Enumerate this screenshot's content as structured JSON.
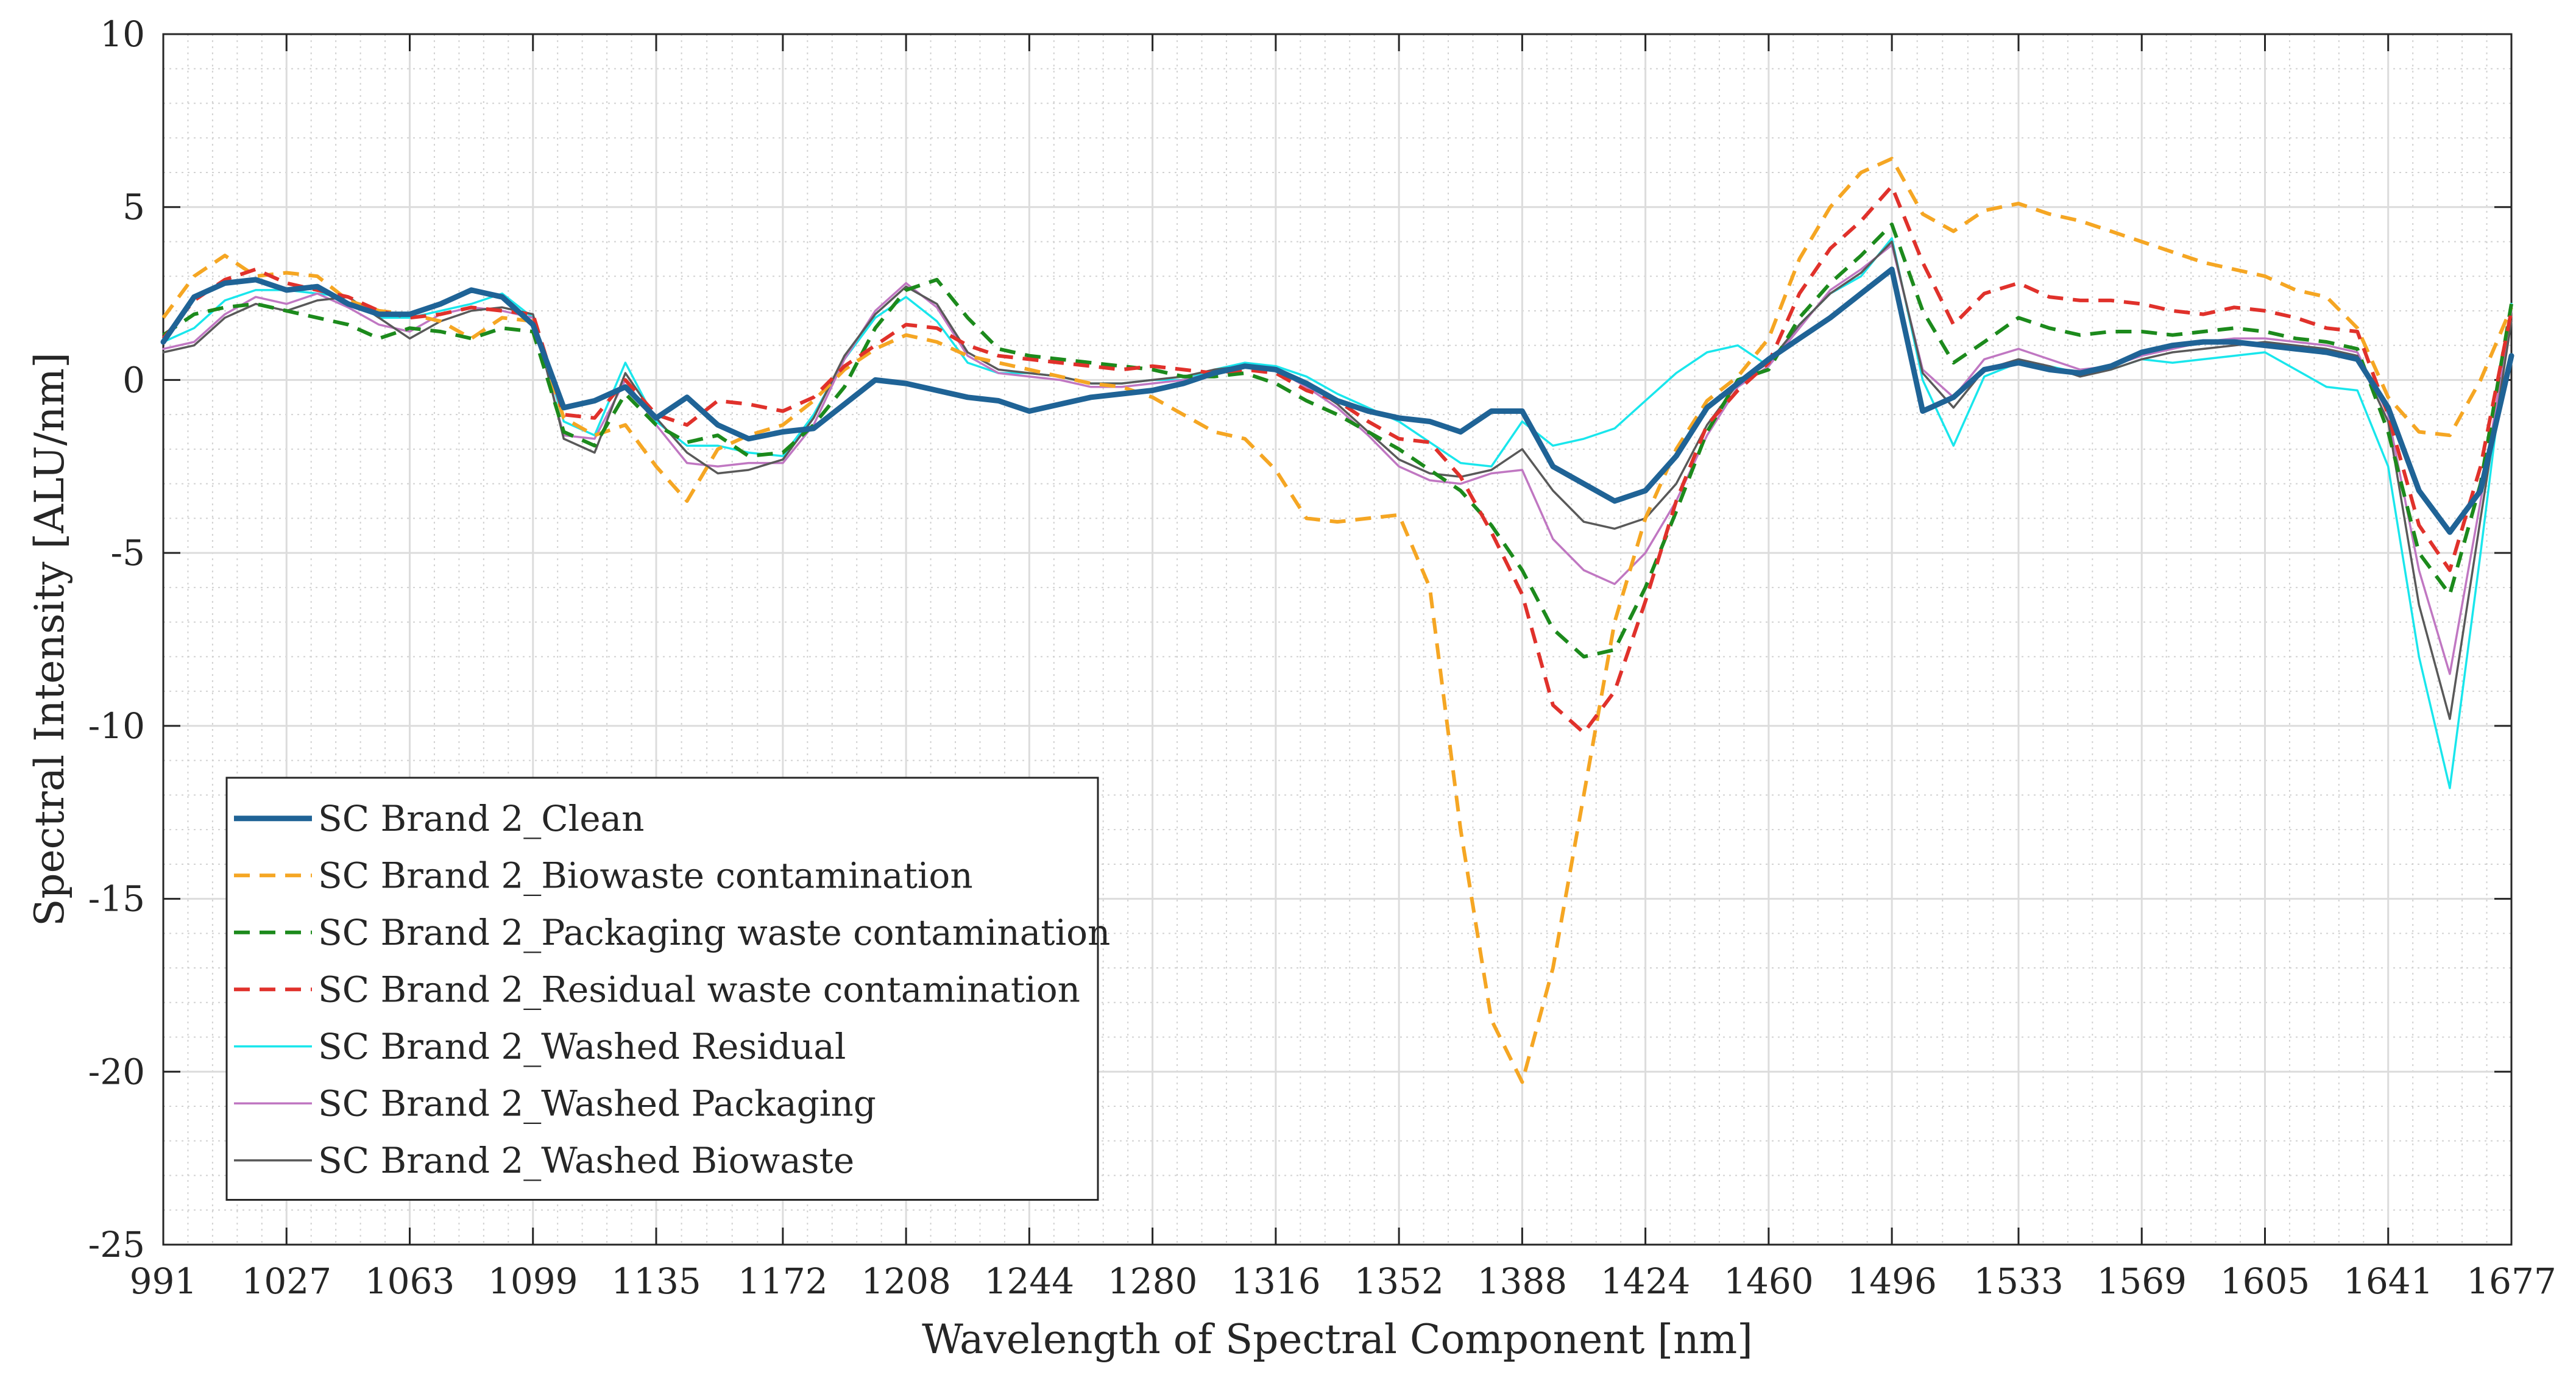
{
  "chart_data": {
    "type": "line",
    "title": "",
    "xlabel": "Wavelength of Spectral Component [nm]",
    "ylabel": "Spectral Intensity [ALU/nm]",
    "xlim": [
      991,
      1677
    ],
    "ylim": [
      -25,
      10
    ],
    "grid": true,
    "minor_grid": true,
    "legend_position": "bottom-left",
    "x_ticks": [
      991,
      1027,
      1063,
      1099,
      1135,
      1172,
      1208,
      1244,
      1280,
      1316,
      1352,
      1388,
      1424,
      1460,
      1496,
      1533,
      1569,
      1605,
      1641,
      1677
    ],
    "x_tick_labels": [
      "991",
      "1027",
      "1063",
      "1099",
      "1135",
      "1172",
      "1208",
      "1244",
      "1280",
      "1316",
      "1352",
      "1388",
      "1424",
      "1460",
      "1496",
      "1533",
      "1569",
      "1605",
      "1641",
      "1677"
    ],
    "y_ticks": [
      -25,
      -20,
      -15,
      -10,
      -5,
      0,
      5,
      10
    ],
    "y_tick_labels": [
      "-25",
      "-20",
      "-15",
      "-10",
      "-5",
      "0",
      "5",
      "10"
    ],
    "series": [
      {
        "name": "SC Brand 2_Clean",
        "color": "#1f6396",
        "dash": "solid",
        "weight": "thick",
        "x": [
          991,
          1000,
          1009,
          1018,
          1027,
          1036,
          1045,
          1054,
          1063,
          1072,
          1081,
          1090,
          1099,
          1108,
          1117,
          1126,
          1135,
          1144,
          1153,
          1162,
          1172,
          1181,
          1190,
          1199,
          1208,
          1217,
          1226,
          1235,
          1244,
          1253,
          1262,
          1271,
          1280,
          1289,
          1298,
          1307,
          1316,
          1325,
          1334,
          1343,
          1352,
          1361,
          1370,
          1379,
          1388,
          1397,
          1406,
          1415,
          1424,
          1433,
          1442,
          1451,
          1460,
          1469,
          1478,
          1487,
          1496,
          1505,
          1514,
          1523,
          1533,
          1542,
          1551,
          1560,
          1569,
          1578,
          1587,
          1596,
          1605,
          1614,
          1623,
          1632,
          1641,
          1650,
          1659,
          1668,
          1677
        ],
        "y": [
          1.1,
          2.4,
          2.8,
          2.9,
          2.6,
          2.7,
          2.2,
          1.9,
          1.9,
          2.2,
          2.6,
          2.4,
          1.6,
          -0.8,
          -0.6,
          -0.2,
          -1.1,
          -0.5,
          -1.3,
          -1.7,
          -1.5,
          -1.4,
          -0.7,
          0.0,
          -0.1,
          -0.3,
          -0.5,
          -0.6,
          -0.9,
          -0.7,
          -0.5,
          -0.4,
          -0.3,
          -0.1,
          0.2,
          0.4,
          0.3,
          -0.1,
          -0.6,
          -0.9,
          -1.1,
          -1.2,
          -1.5,
          -0.9,
          -0.9,
          -2.5,
          -3.0,
          -3.5,
          -3.2,
          -2.2,
          -0.8,
          -0.1,
          0.6,
          1.2,
          1.8,
          2.5,
          3.2,
          -0.9,
          -0.5,
          0.3,
          0.5,
          0.3,
          0.2,
          0.4,
          0.8,
          1.0,
          1.1,
          1.1,
          1.0,
          0.9,
          0.8,
          0.6,
          -0.8,
          -3.2,
          -4.4,
          -3.2,
          0.7
        ]
      },
      {
        "name": "SC Brand 2_Biowaste contamination",
        "color": "#f5a623",
        "dash": "dashed",
        "weight": "normal",
        "x": [
          991,
          1000,
          1009,
          1018,
          1027,
          1036,
          1045,
          1054,
          1063,
          1072,
          1081,
          1090,
          1099,
          1108,
          1117,
          1126,
          1135,
          1144,
          1153,
          1162,
          1172,
          1181,
          1190,
          1199,
          1208,
          1217,
          1226,
          1235,
          1244,
          1253,
          1262,
          1271,
          1280,
          1289,
          1298,
          1307,
          1316,
          1325,
          1334,
          1343,
          1352,
          1361,
          1370,
          1379,
          1388,
          1397,
          1406,
          1415,
          1424,
          1433,
          1442,
          1451,
          1460,
          1469,
          1478,
          1487,
          1496,
          1505,
          1514,
          1523,
          1533,
          1542,
          1551,
          1560,
          1569,
          1578,
          1587,
          1596,
          1605,
          1614,
          1623,
          1632,
          1641,
          1650,
          1659,
          1668,
          1677
        ],
        "y": [
          1.8,
          3.0,
          3.6,
          3.0,
          3.1,
          3.0,
          2.3,
          2.0,
          1.9,
          1.7,
          1.2,
          1.8,
          1.7,
          -1.1,
          -1.6,
          -1.3,
          -2.5,
          -3.5,
          -2.0,
          -1.6,
          -1.3,
          -0.6,
          0.3,
          0.9,
          1.3,
          1.1,
          0.7,
          0.5,
          0.3,
          0.1,
          -0.1,
          -0.2,
          -0.5,
          -1.0,
          -1.5,
          -1.7,
          -2.6,
          -4.0,
          -4.1,
          -4.0,
          -3.9,
          -6.0,
          -13.0,
          -18.5,
          -20.3,
          -17.0,
          -12.0,
          -7.0,
          -4.0,
          -2.0,
          -0.6,
          0.1,
          1.2,
          3.5,
          5.0,
          6.0,
          6.4,
          4.8,
          4.3,
          4.9,
          5.1,
          4.8,
          4.6,
          4.3,
          4.0,
          3.7,
          3.4,
          3.2,
          3.0,
          2.6,
          2.4,
          1.5,
          -0.5,
          -1.5,
          -1.6,
          0.0,
          2.1
        ]
      },
      {
        "name": "SC Brand 2_Packaging waste contamination",
        "color": "#1c8a1c",
        "dash": "dashed",
        "weight": "normal",
        "x": [
          991,
          1000,
          1009,
          1018,
          1027,
          1036,
          1045,
          1054,
          1063,
          1072,
          1081,
          1090,
          1099,
          1108,
          1117,
          1126,
          1135,
          1144,
          1153,
          1162,
          1172,
          1181,
          1190,
          1199,
          1208,
          1217,
          1226,
          1235,
          1244,
          1253,
          1262,
          1271,
          1280,
          1289,
          1298,
          1307,
          1316,
          1325,
          1334,
          1343,
          1352,
          1361,
          1370,
          1379,
          1388,
          1397,
          1406,
          1415,
          1424,
          1433,
          1442,
          1451,
          1460,
          1469,
          1478,
          1487,
          1496,
          1505,
          1514,
          1523,
          1533,
          1542,
          1551,
          1560,
          1569,
          1578,
          1587,
          1596,
          1605,
          1614,
          1623,
          1632,
          1641,
          1650,
          1659,
          1668,
          1677
        ],
        "y": [
          1.3,
          1.9,
          2.1,
          2.2,
          2.0,
          1.8,
          1.6,
          1.2,
          1.5,
          1.4,
          1.2,
          1.5,
          1.4,
          -1.5,
          -1.9,
          -0.4,
          -1.3,
          -1.8,
          -1.6,
          -2.2,
          -2.1,
          -1.3,
          -0.2,
          1.5,
          2.6,
          2.9,
          1.8,
          0.9,
          0.7,
          0.6,
          0.5,
          0.4,
          0.3,
          0.1,
          0.1,
          0.2,
          -0.1,
          -0.6,
          -1.0,
          -1.5,
          -2.0,
          -2.6,
          -3.2,
          -4.2,
          -5.5,
          -7.2,
          -8.0,
          -7.8,
          -6.0,
          -3.8,
          -1.5,
          0.0,
          0.3,
          1.8,
          2.8,
          3.6,
          4.5,
          2.0,
          0.5,
          1.1,
          1.8,
          1.5,
          1.3,
          1.4,
          1.4,
          1.3,
          1.4,
          1.5,
          1.4,
          1.2,
          1.1,
          0.9,
          -1.5,
          -5.0,
          -6.2,
          -3.0,
          2.2
        ]
      },
      {
        "name": "SC Brand 2_Residual waste contamination",
        "color": "#e0312b",
        "dash": "dashed",
        "weight": "normal",
        "x": [
          991,
          1000,
          1009,
          1018,
          1027,
          1036,
          1045,
          1054,
          1063,
          1072,
          1081,
          1090,
          1099,
          1108,
          1117,
          1126,
          1135,
          1144,
          1153,
          1162,
          1172,
          1181,
          1190,
          1199,
          1208,
          1217,
          1226,
          1235,
          1244,
          1253,
          1262,
          1271,
          1280,
          1289,
          1298,
          1307,
          1316,
          1325,
          1334,
          1343,
          1352,
          1361,
          1370,
          1379,
          1388,
          1397,
          1406,
          1415,
          1424,
          1433,
          1442,
          1451,
          1460,
          1469,
          1478,
          1487,
          1496,
          1505,
          1514,
          1523,
          1533,
          1542,
          1551,
          1560,
          1569,
          1578,
          1587,
          1596,
          1605,
          1614,
          1623,
          1632,
          1641,
          1650,
          1659,
          1668,
          1677
        ],
        "y": [
          1.2,
          2.3,
          2.9,
          3.2,
          2.8,
          2.6,
          2.4,
          2.0,
          1.8,
          1.9,
          2.1,
          2.0,
          1.9,
          -1.0,
          -1.1,
          0.0,
          -1.0,
          -1.3,
          -0.6,
          -0.7,
          -0.9,
          -0.5,
          0.4,
          1.0,
          1.6,
          1.5,
          1.0,
          0.7,
          0.6,
          0.5,
          0.4,
          0.3,
          0.4,
          0.3,
          0.2,
          0.3,
          0.2,
          -0.3,
          -0.6,
          -1.2,
          -1.7,
          -1.8,
          -2.8,
          -4.4,
          -6.2,
          -9.4,
          -10.2,
          -9.0,
          -6.4,
          -3.5,
          -1.3,
          -0.3,
          0.5,
          2.5,
          3.8,
          4.6,
          5.6,
          3.4,
          1.6,
          2.5,
          2.8,
          2.4,
          2.3,
          2.3,
          2.2,
          2.0,
          1.9,
          2.1,
          2.0,
          1.8,
          1.5,
          1.4,
          -1.0,
          -4.2,
          -5.5,
          -2.5,
          2.0
        ]
      },
      {
        "name": "SC Brand 2_Washed Residual",
        "color": "#19e6ec",
        "dash": "solid",
        "weight": "thin",
        "x": [
          991,
          1000,
          1009,
          1018,
          1027,
          1036,
          1045,
          1054,
          1063,
          1072,
          1081,
          1090,
          1099,
          1108,
          1117,
          1126,
          1135,
          1144,
          1153,
          1162,
          1172,
          1181,
          1190,
          1199,
          1208,
          1217,
          1226,
          1235,
          1244,
          1253,
          1262,
          1271,
          1280,
          1289,
          1298,
          1307,
          1316,
          1325,
          1334,
          1343,
          1352,
          1361,
          1370,
          1379,
          1388,
          1397,
          1406,
          1415,
          1424,
          1433,
          1442,
          1451,
          1460,
          1469,
          1478,
          1487,
          1496,
          1505,
          1514,
          1523,
          1533,
          1542,
          1551,
          1560,
          1569,
          1578,
          1587,
          1596,
          1605,
          1614,
          1623,
          1632,
          1641,
          1650,
          1659,
          1668,
          1677
        ],
        "y": [
          1.1,
          1.5,
          2.3,
          2.6,
          2.6,
          2.5,
          2.4,
          1.8,
          1.8,
          2.0,
          2.2,
          2.5,
          1.8,
          -1.2,
          -1.6,
          0.5,
          -1.2,
          -1.9,
          -1.9,
          -2.1,
          -2.2,
          -1.0,
          0.6,
          1.8,
          2.4,
          1.7,
          0.5,
          0.2,
          0.2,
          0.1,
          -0.1,
          -0.1,
          0.0,
          0.0,
          0.3,
          0.5,
          0.4,
          0.1,
          -0.4,
          -0.8,
          -1.2,
          -1.8,
          -2.4,
          -2.5,
          -1.2,
          -1.9,
          -1.7,
          -1.4,
          -0.6,
          0.2,
          0.8,
          1.0,
          0.4,
          1.6,
          2.5,
          3.0,
          4.1,
          0.0,
          -1.9,
          0.1,
          0.5,
          0.4,
          0.2,
          0.3,
          0.6,
          0.5,
          0.6,
          0.7,
          0.8,
          0.3,
          -0.2,
          -0.3,
          -2.5,
          -8.0,
          -11.8,
          -5.0,
          2.2
        ]
      },
      {
        "name": "SC Brand 2_Washed Packaging",
        "color": "#c077c2",
        "dash": "solid",
        "weight": "thin",
        "x": [
          991,
          1000,
          1009,
          1018,
          1027,
          1036,
          1045,
          1054,
          1063,
          1072,
          1081,
          1090,
          1099,
          1108,
          1117,
          1126,
          1135,
          1144,
          1153,
          1162,
          1172,
          1181,
          1190,
          1199,
          1208,
          1217,
          1226,
          1235,
          1244,
          1253,
          1262,
          1271,
          1280,
          1289,
          1298,
          1307,
          1316,
          1325,
          1334,
          1343,
          1352,
          1361,
          1370,
          1379,
          1388,
          1397,
          1406,
          1415,
          1424,
          1433,
          1442,
          1451,
          1460,
          1469,
          1478,
          1487,
          1496,
          1505,
          1514,
          1523,
          1533,
          1542,
          1551,
          1560,
          1569,
          1578,
          1587,
          1596,
          1605,
          1614,
          1623,
          1632,
          1641,
          1650,
          1659,
          1668,
          1677
        ],
        "y": [
          0.9,
          1.1,
          1.9,
          2.4,
          2.2,
          2.5,
          2.1,
          1.6,
          1.4,
          1.9,
          2.1,
          2.0,
          1.8,
          -1.6,
          -1.7,
          0.0,
          -1.3,
          -2.4,
          -2.5,
          -2.4,
          -2.4,
          -1.3,
          0.6,
          2.0,
          2.8,
          2.1,
          0.7,
          0.2,
          0.1,
          0.0,
          -0.2,
          -0.2,
          -0.1,
          0.0,
          0.2,
          0.4,
          0.3,
          -0.2,
          -0.8,
          -1.6,
          -2.5,
          -2.9,
          -3.0,
          -2.7,
          -2.6,
          -4.6,
          -5.5,
          -5.9,
          -5.0,
          -3.5,
          -1.6,
          -0.2,
          0.4,
          1.5,
          2.6,
          3.2,
          3.9,
          0.3,
          -0.5,
          0.6,
          0.9,
          0.6,
          0.3,
          0.4,
          0.7,
          0.9,
          1.1,
          1.2,
          1.2,
          1.1,
          1.0,
          0.8,
          -1.0,
          -5.5,
          -8.5,
          -3.5,
          2.0
        ]
      },
      {
        "name": "SC Brand 2_Washed Biowaste",
        "color": "#595959",
        "dash": "solid",
        "weight": "thin",
        "x": [
          991,
          1000,
          1009,
          1018,
          1027,
          1036,
          1045,
          1054,
          1063,
          1072,
          1081,
          1090,
          1099,
          1108,
          1117,
          1126,
          1135,
          1144,
          1153,
          1162,
          1172,
          1181,
          1190,
          1199,
          1208,
          1217,
          1226,
          1235,
          1244,
          1253,
          1262,
          1271,
          1280,
          1289,
          1298,
          1307,
          1316,
          1325,
          1334,
          1343,
          1352,
          1361,
          1370,
          1379,
          1388,
          1397,
          1406,
          1415,
          1424,
          1433,
          1442,
          1451,
          1460,
          1469,
          1478,
          1487,
          1496,
          1505,
          1514,
          1523,
          1533,
          1542,
          1551,
          1560,
          1569,
          1578,
          1587,
          1596,
          1605,
          1614,
          1623,
          1632,
          1641,
          1650,
          1659,
          1668,
          1677
        ],
        "y": [
          0.8,
          1.0,
          1.8,
          2.2,
          2.0,
          2.3,
          2.4,
          1.8,
          1.2,
          1.7,
          2.0,
          2.1,
          1.9,
          -1.7,
          -2.1,
          0.2,
          -1.1,
          -2.1,
          -2.7,
          -2.6,
          -2.3,
          -1.1,
          0.7,
          1.9,
          2.7,
          2.2,
          0.8,
          0.3,
          0.2,
          0.1,
          -0.1,
          -0.1,
          0.0,
          0.1,
          0.3,
          0.4,
          0.3,
          -0.1,
          -0.7,
          -1.5,
          -2.3,
          -2.7,
          -2.8,
          -2.6,
          -2.0,
          -3.2,
          -4.1,
          -4.3,
          -4.0,
          -3.0,
          -1.3,
          -0.1,
          0.5,
          1.6,
          2.5,
          3.1,
          4.0,
          0.2,
          -0.8,
          0.3,
          0.6,
          0.4,
          0.1,
          0.3,
          0.6,
          0.8,
          0.9,
          1.0,
          1.1,
          1.0,
          0.9,
          0.7,
          -1.2,
          -6.5,
          -9.8,
          -4.0,
          1.7
        ]
      }
    ]
  }
}
